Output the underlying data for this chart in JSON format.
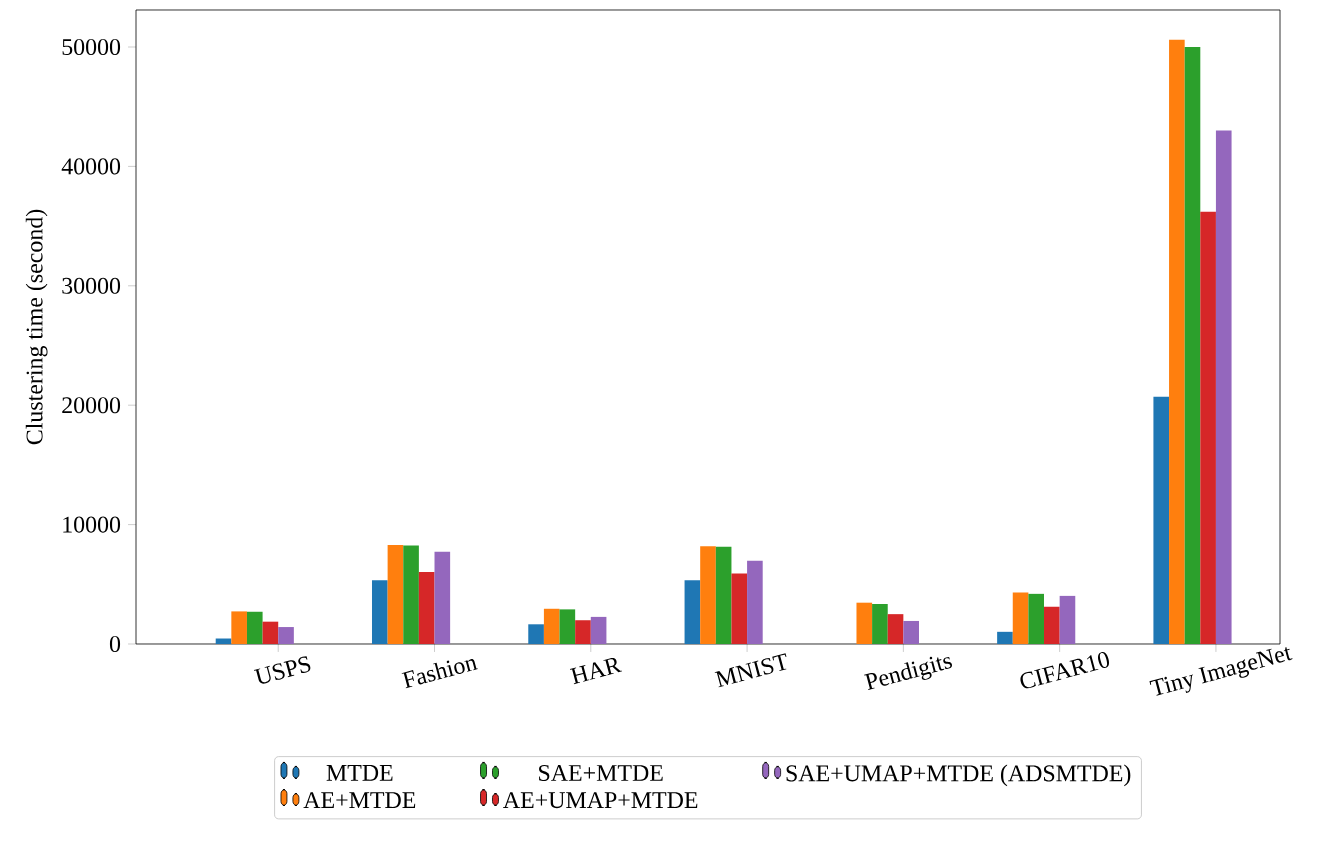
{
  "chart_data": {
    "type": "bar",
    "ylabel": "Clustering time (second)",
    "categories": [
      "USPS",
      "Fashion",
      "HAR",
      "MNIST",
      "Pendigits",
      "CIFAR10",
      "Tiny ImageNet"
    ],
    "series": [
      {
        "name": "MTDE",
        "color": "#1f77b4",
        "values": [
          460,
          5330,
          1650,
          5330,
          null,
          1020,
          20700
        ]
      },
      {
        "name": "AE+MTDE",
        "color": "#ff7f0e",
        "values": [
          2730,
          8290,
          2950,
          8180,
          3460,
          4310,
          50600
        ]
      },
      {
        "name": "SAE+MTDE",
        "color": "#2ca02c",
        "values": [
          2700,
          8250,
          2900,
          8150,
          3350,
          4200,
          50000
        ]
      },
      {
        "name": "AE+UMAP+MTDE",
        "color": "#d62728",
        "values": [
          1870,
          6020,
          1990,
          5910,
          2500,
          3120,
          36200
        ]
      },
      {
        "name": "SAE+UMAP+MTDE (ADSMTDE)",
        "color": "#9467bd",
        "values": [
          1420,
          7720,
          2270,
          6980,
          1930,
          4030,
          43000
        ]
      }
    ],
    "ylim": [
      0,
      53100
    ],
    "yticks": [
      0,
      10000,
      20000,
      30000,
      40000,
      50000
    ],
    "legend": "bottom"
  }
}
